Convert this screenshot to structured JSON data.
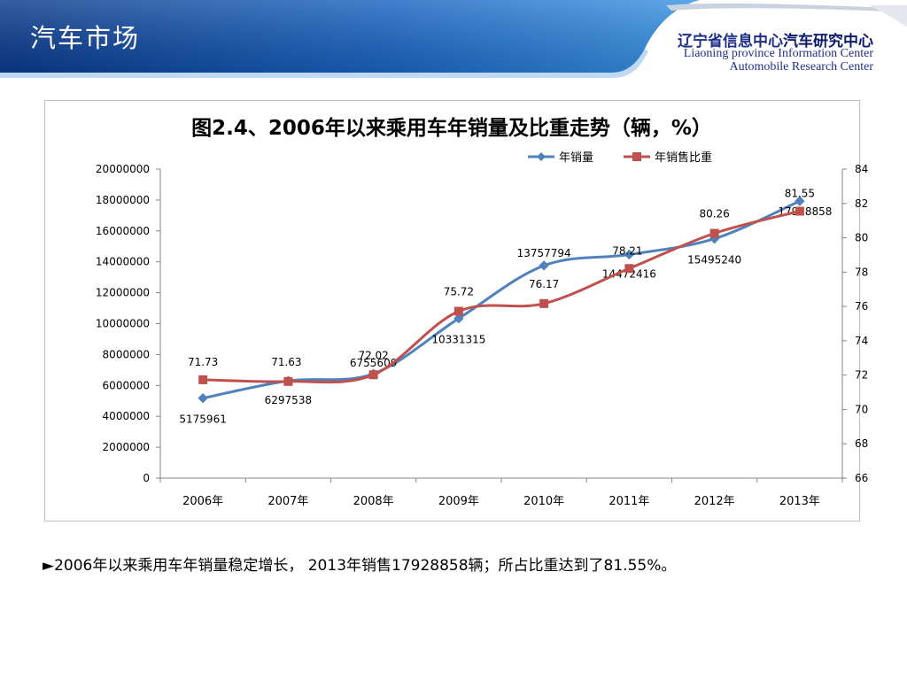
{
  "header": {
    "slide_title": "汽车市场",
    "org_cn_prefix": "辽宁省信息中心",
    "org_cn_strong": "汽车研究中心",
    "org_en_line1": "Liaoning province Information Center",
    "org_en_line2": "Automobile Research Center",
    "colors": {
      "banner_dark": "#0a3d8f",
      "banner_light": "#2f86d8"
    }
  },
  "chart_data": {
    "type": "line",
    "title": "图2.4、2006年以来乘用车年销量及比重走势（辆，%）",
    "categories": [
      "2006年",
      "2007年",
      "2008年",
      "2009年",
      "2010年",
      "2011年",
      "2012年",
      "2013年"
    ],
    "series": [
      {
        "name": "年销量",
        "axis": "left",
        "color": "#4f81bd",
        "marker": "diamond",
        "values": [
          5175961,
          6297538,
          6755609,
          10331315,
          13757794,
          14472416,
          15495240,
          17928858
        ],
        "labels": [
          "5175961",
          "6297538",
          "6755609",
          "10331315",
          "13757794",
          "14472416",
          "15495240",
          "17928858"
        ]
      },
      {
        "name": "年销售比重",
        "axis": "right",
        "color": "#c0504d",
        "marker": "square",
        "values": [
          71.73,
          71.63,
          72.02,
          75.72,
          76.17,
          78.21,
          80.26,
          81.55
        ],
        "labels": [
          "71.73",
          "71.63",
          "72.02",
          "75.72",
          "76.17",
          "78.21",
          "80.26",
          "81.55"
        ]
      }
    ],
    "y_left": {
      "range": [
        0,
        20000000
      ],
      "ticks": [
        "0",
        "2000000",
        "4000000",
        "6000000",
        "8000000",
        "10000000",
        "12000000",
        "14000000",
        "16000000",
        "18000000",
        "20000000"
      ]
    },
    "y_right": {
      "range": [
        66,
        84
      ],
      "ticks": [
        "66",
        "68",
        "70",
        "72",
        "74",
        "76",
        "78",
        "80",
        "82",
        "84"
      ]
    },
    "legend_position": "top-right",
    "grid": false,
    "smooth": true
  },
  "caption": "►2006年以来乘用车年销量稳定增长， 2013年销售17928858辆；所占比重达到了81.55%。"
}
